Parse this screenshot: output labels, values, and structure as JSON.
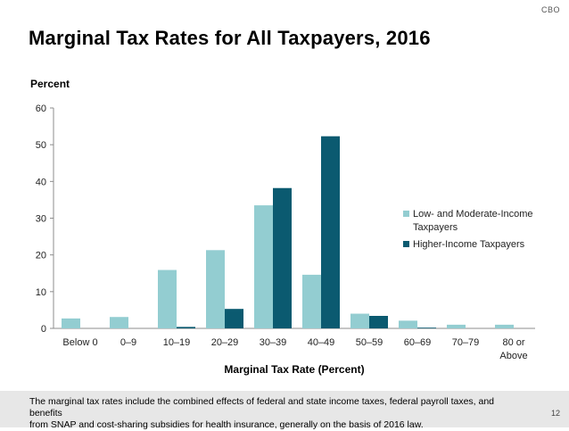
{
  "logo": "CBO",
  "title": "Marginal Tax Rates for All Taxpayers, 2016",
  "footer": {
    "note_line1": "The marginal tax rates include the combined effects of federal and state income taxes, federal payroll taxes, and benefits",
    "note_line2": "from SNAP and cost-sharing subsidies for health insurance, generally on the basis of 2016 law.",
    "page_number": "12"
  },
  "colors": {
    "low_moderate": "#93cdd1",
    "higher": "#0b5a70",
    "axis": "#8c8c8c"
  },
  "chart_data": {
    "type": "bar",
    "title": "Marginal Tax Rates for All Taxpayers, 2016",
    "ylabel": "Percent",
    "xlabel": "Marginal Tax Rate (Percent)",
    "ylim": [
      0,
      60
    ],
    "yticks": [
      0,
      10,
      20,
      30,
      40,
      50,
      60
    ],
    "categories": [
      [
        "Below 0"
      ],
      [
        "0–9"
      ],
      [
        "10–19"
      ],
      [
        "20–29"
      ],
      [
        "30–39"
      ],
      [
        "40–49"
      ],
      [
        "50–59"
      ],
      [
        "60–69"
      ],
      [
        "70–79"
      ],
      [
        "80 or",
        "Above"
      ]
    ],
    "series": [
      {
        "name": "Low- and Moderate-Income Taxpayers",
        "legend_lines": [
          "Low- and Moderate-Income",
          "Taxpayers"
        ],
        "values": [
          2.7,
          3.1,
          15.9,
          21.3,
          33.5,
          14.6,
          4.0,
          2.1,
          1.0,
          1.0
        ]
      },
      {
        "name": "Higher-Income Taxpayers",
        "legend_lines": [
          "Higher-Income Taxpayers"
        ],
        "values": [
          0,
          0,
          0.4,
          5.3,
          38.2,
          52.3,
          3.4,
          0.2,
          0,
          0
        ]
      }
    ],
    "legend_position": "right",
    "grid": false
  }
}
